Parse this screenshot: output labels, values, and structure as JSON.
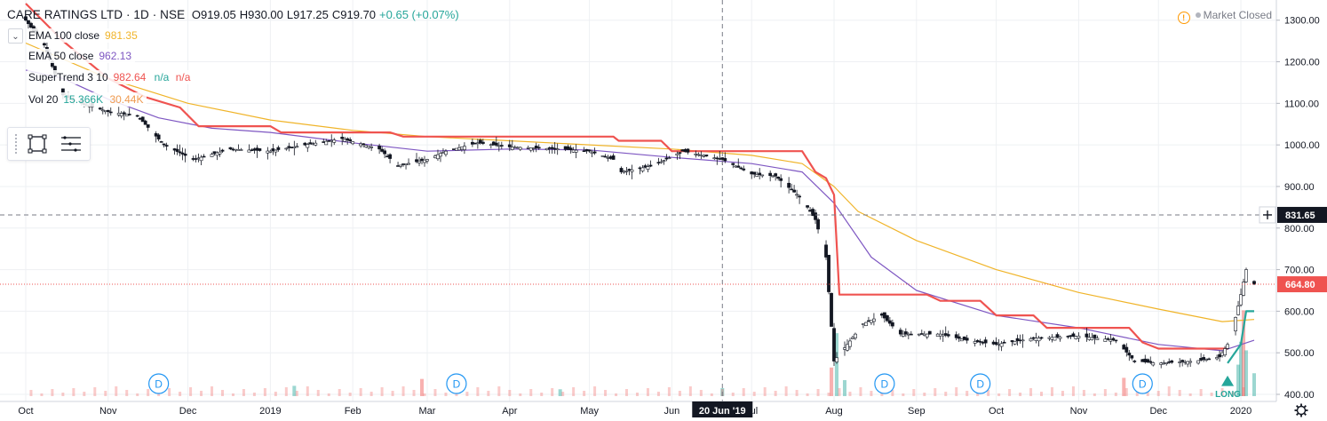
{
  "header": {
    "symbol": "CARE RATINGS LTD · 1D · NSE",
    "open": "O919.05",
    "high": "H930.00",
    "low": "L917.25",
    "close": "C919.70",
    "change": "+0.65 (+0.07%)"
  },
  "indicators": [
    {
      "label": "EMA 100 close",
      "value": "981.35",
      "color": "#f0b429"
    },
    {
      "label": "EMA 50 close",
      "value": "962.13",
      "color": "#7e57c2"
    },
    {
      "label": "SuperTrend 3 10",
      "value": "982.64",
      "extra1": "n/a",
      "extra2": "n/a",
      "color": "#ef5350"
    },
    {
      "label": "Vol 20",
      "value": "15.366K",
      "extra1": "30.44K",
      "color": "#26a69a"
    }
  ],
  "market_status": "Market Closed",
  "crosshair": {
    "date_label": "20 Jun '19",
    "price_label": "831.65"
  },
  "last_price_label": "664.80",
  "chart_data": {
    "type": "candlestick",
    "x_axis": {
      "type": "date",
      "tick_labels": [
        "Oct",
        "Nov",
        "Dec",
        "2019",
        "Feb",
        "Mar",
        "Apr",
        "May",
        "Jun",
        "Jul",
        "Aug",
        "Sep",
        "Oct",
        "Nov",
        "Dec",
        "2020"
      ]
    },
    "y_axis": {
      "position": "right",
      "ylim": [
        400,
        1340
      ],
      "ticks": [
        "1300.00",
        "1200.00",
        "1100.00",
        "1000.00",
        "900.00",
        "800.00",
        "700.00",
        "600.00",
        "500.00",
        "400.00"
      ]
    },
    "grid": true,
    "close_path": [
      [
        "2018-10-01",
        1300
      ],
      [
        "2018-10-08",
        1240
      ],
      [
        "2018-10-15",
        1120
      ],
      [
        "2018-10-22",
        1100
      ],
      [
        "2018-11-01",
        1080
      ],
      [
        "2018-11-12",
        1070
      ],
      [
        "2018-11-22",
        1000
      ],
      [
        "2018-12-03",
        965
      ],
      [
        "2018-12-17",
        990
      ],
      [
        "2019-01-01",
        985
      ],
      [
        "2019-01-14",
        1000
      ],
      [
        "2019-01-28",
        1015
      ],
      [
        "2019-02-11",
        990
      ],
      [
        "2019-02-18",
        950
      ],
      [
        "2019-03-01",
        965
      ],
      [
        "2019-03-08",
        985
      ],
      [
        "2019-03-20",
        1005
      ],
      [
        "2019-04-01",
        995
      ],
      [
        "2019-04-20",
        990
      ],
      [
        "2019-05-01",
        985
      ],
      [
        "2019-05-10",
        965
      ],
      [
        "2019-05-13",
        935
      ],
      [
        "2019-05-25",
        950
      ],
      [
        "2019-06-05",
        985
      ],
      [
        "2019-06-20",
        965
      ],
      [
        "2019-07-01",
        930
      ],
      [
        "2019-07-10",
        925
      ],
      [
        "2019-07-20",
        870
      ],
      [
        "2019-07-25",
        820
      ],
      [
        "2019-07-29",
        730
      ],
      [
        "2019-08-01",
        480
      ],
      [
        "2019-08-06",
        520
      ],
      [
        "2019-08-12",
        570
      ],
      [
        "2019-08-19",
        590
      ],
      [
        "2019-08-26",
        545
      ],
      [
        "2019-09-10",
        545
      ],
      [
        "2019-09-20",
        530
      ],
      [
        "2019-10-01",
        520
      ],
      [
        "2019-10-15",
        535
      ],
      [
        "2019-11-01",
        540
      ],
      [
        "2019-11-15",
        530
      ],
      [
        "2019-11-22",
        480
      ],
      [
        "2019-12-01",
        475
      ],
      [
        "2019-12-15",
        480
      ],
      [
        "2019-12-24",
        490
      ],
      [
        "2019-12-28",
        530
      ],
      [
        "2020-01-01",
        640
      ],
      [
        "2020-01-03",
        700
      ],
      [
        "2020-01-06",
        665
      ]
    ],
    "series": [
      {
        "name": "EMA 100 close",
        "color": "#f0b429",
        "points": [
          [
            "2018-10-01",
            1245
          ],
          [
            "2018-11-01",
            1160
          ],
          [
            "2018-12-01",
            1100
          ],
          [
            "2019-01-01",
            1060
          ],
          [
            "2019-02-01",
            1035
          ],
          [
            "2019-03-01",
            1020
          ],
          [
            "2019-04-01",
            1010
          ],
          [
            "2019-05-01",
            1000
          ],
          [
            "2019-06-01",
            990
          ],
          [
            "2019-07-01",
            975
          ],
          [
            "2019-07-20",
            955
          ],
          [
            "2019-08-01",
            900
          ],
          [
            "2019-08-10",
            840
          ],
          [
            "2019-09-01",
            770
          ],
          [
            "2019-10-01",
            700
          ],
          [
            "2019-11-01",
            645
          ],
          [
            "2019-12-01",
            605
          ],
          [
            "2019-12-25",
            575
          ],
          [
            "2020-01-06",
            580
          ]
        ]
      },
      {
        "name": "EMA 50 close",
        "color": "#7e57c2",
        "points": [
          [
            "2018-10-01",
            1180
          ],
          [
            "2018-10-15",
            1160
          ],
          [
            "2018-11-01",
            1110
          ],
          [
            "2018-11-20",
            1065
          ],
          [
            "2018-12-10",
            1040
          ],
          [
            "2019-01-01",
            1030
          ],
          [
            "2019-02-01",
            1005
          ],
          [
            "2019-03-01",
            985
          ],
          [
            "2019-04-01",
            990
          ],
          [
            "2019-05-01",
            988
          ],
          [
            "2019-06-01",
            970
          ],
          [
            "2019-07-01",
            955
          ],
          [
            "2019-07-20",
            935
          ],
          [
            "2019-08-01",
            860
          ],
          [
            "2019-08-15",
            730
          ],
          [
            "2019-09-01",
            650
          ],
          [
            "2019-10-01",
            590
          ],
          [
            "2019-11-01",
            560
          ],
          [
            "2019-12-01",
            520
          ],
          [
            "2019-12-25",
            505
          ],
          [
            "2020-01-06",
            530
          ]
        ]
      },
      {
        "name": "SuperTrend 3 10",
        "color": "#ef5350",
        "points": [
          [
            "2018-10-01",
            1340
          ],
          [
            "2018-10-15",
            1250
          ],
          [
            "2018-11-01",
            1160
          ],
          [
            "2018-11-15",
            1115
          ],
          [
            "2018-11-28",
            1090
          ],
          [
            "2018-12-05",
            1045
          ],
          [
            "2019-01-01",
            1045
          ],
          [
            "2019-01-05",
            1030
          ],
          [
            "2019-02-15",
            1030
          ],
          [
            "2019-02-20",
            1020
          ],
          [
            "2019-05-10",
            1020
          ],
          [
            "2019-05-12",
            1010
          ],
          [
            "2019-05-28",
            1010
          ],
          [
            "2019-06-01",
            985
          ],
          [
            "2019-06-05",
            985
          ],
          [
            "2019-06-30",
            985
          ],
          [
            "2019-07-20",
            985
          ],
          [
            "2019-07-25",
            935
          ],
          [
            "2019-07-29",
            920
          ],
          [
            "2019-08-01",
            880
          ],
          [
            "2019-08-03",
            640
          ],
          [
            "2019-09-05",
            640
          ],
          [
            "2019-09-10",
            625
          ],
          [
            "2019-09-25",
            625
          ],
          [
            "2019-10-01",
            590
          ],
          [
            "2019-10-15",
            590
          ],
          [
            "2019-10-20",
            560
          ],
          [
            "2019-11-20",
            560
          ],
          [
            "2019-11-25",
            525
          ],
          [
            "2019-12-01",
            510
          ],
          [
            "2019-12-27",
            510
          ]
        ]
      },
      {
        "name": "SuperTrend 3 10 (up)",
        "color": "#26a69a",
        "points": [
          [
            "2019-12-27",
            475
          ],
          [
            "2020-01-01",
            520
          ],
          [
            "2020-01-03",
            600
          ],
          [
            "2020-01-06",
            600
          ]
        ]
      }
    ],
    "dividend_markers": [
      "2018-11-20",
      "2019-03-12",
      "2019-08-20",
      "2019-09-25",
      "2019-11-25"
    ],
    "volume": {
      "color_up": "#26a69a",
      "color_down": "#ef5350",
      "ylim": [
        0,
        180
      ],
      "bars": [
        [
          "2019-01-10",
          18
        ],
        [
          "2019-02-27",
          30
        ],
        [
          "2019-04-20",
          12
        ],
        [
          "2019-06-20",
          14
        ],
        [
          "2019-07-31",
          50
        ],
        [
          "2019-08-02",
          110
        ],
        [
          "2019-08-05",
          28
        ],
        [
          "2019-11-18",
          32
        ],
        [
          "2019-12-31",
          55
        ],
        [
          "2020-01-01",
          95
        ],
        [
          "2020-01-02",
          150
        ],
        [
          "2020-01-03",
          80
        ],
        [
          "2020-01-06",
          40
        ]
      ]
    },
    "signal_label": "LONG"
  }
}
